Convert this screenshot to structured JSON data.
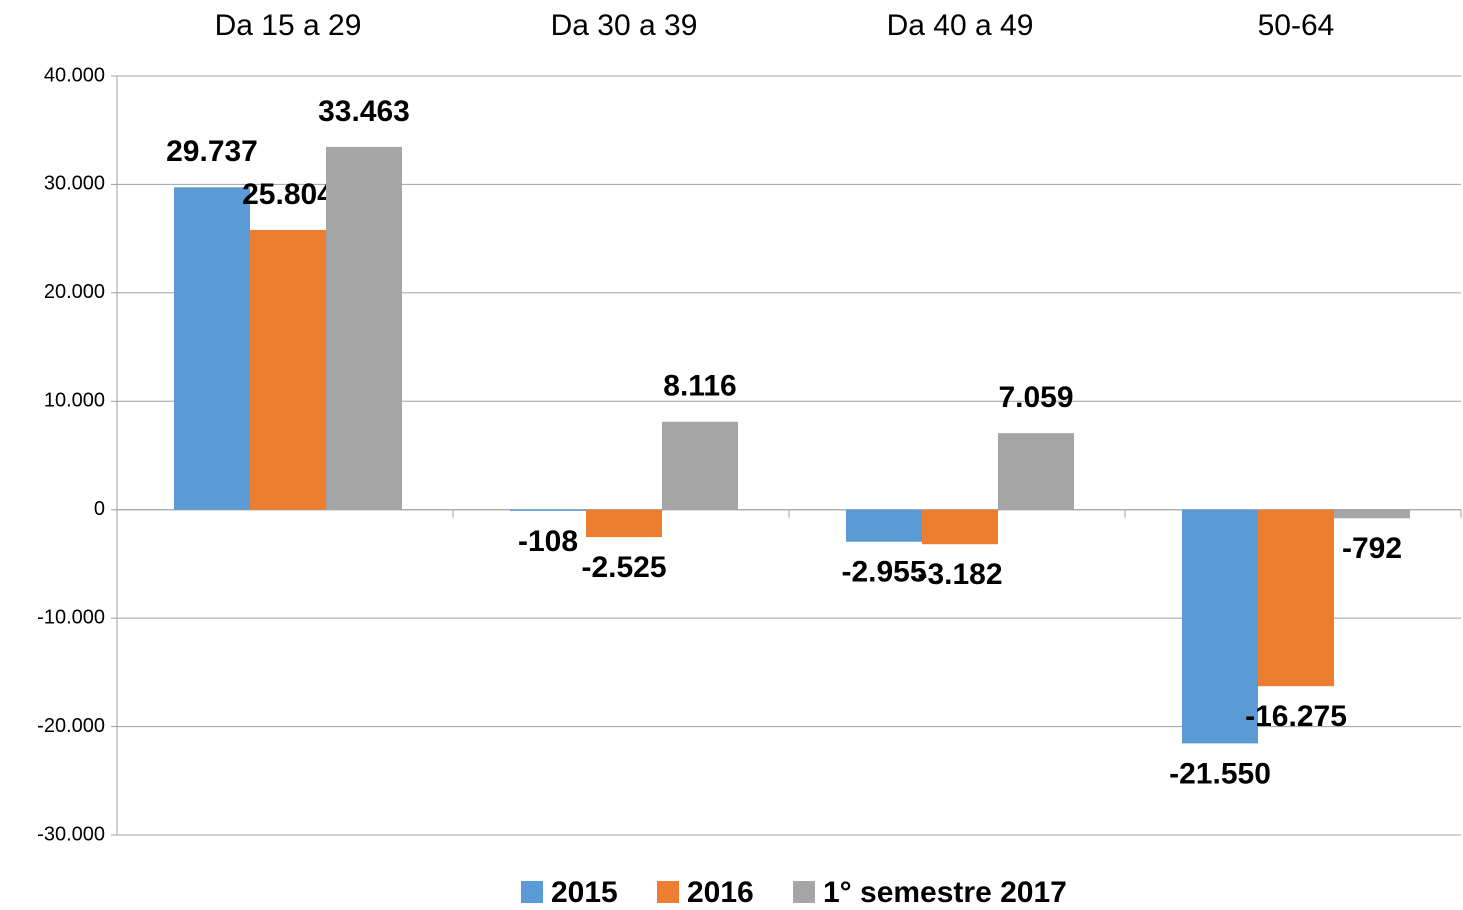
{
  "chart_data": {
    "type": "bar",
    "categories": [
      "Da 15 a 29",
      "Da 30 a 39",
      "Da 40 a 49",
      "50-64"
    ],
    "series": [
      {
        "name": "2015",
        "color": "#5b9bd5",
        "values": [
          29737,
          -108,
          -2955,
          -21550
        ],
        "value_labels": [
          "29.737",
          "-108",
          "-2.955",
          "-21.550"
        ]
      },
      {
        "name": "2016",
        "color": "#ed7d31",
        "values": [
          25804,
          -2525,
          -3182,
          -16275
        ],
        "value_labels": [
          "25.804",
          "-2.525",
          "-3.182",
          "-16.275"
        ]
      },
      {
        "name": "1° semestre 2017",
        "color": "#a5a5a5",
        "values": [
          33463,
          8116,
          7059,
          -792
        ],
        "value_labels": [
          "33.463",
          "8.116",
          "7.059",
          "-792"
        ]
      }
    ],
    "ylim": [
      -30000,
      40000
    ],
    "yticks": [
      {
        "value": -30000,
        "label": "-30.000"
      },
      {
        "value": -20000,
        "label": "-20.000"
      },
      {
        "value": -10000,
        "label": "-10.000"
      },
      0,
      {
        "value": 10000,
        "label": "10.000"
      },
      {
        "value": 20000,
        "label": "20.000"
      },
      {
        "value": 30000,
        "label": "30.000"
      },
      {
        "value": 40000,
        "label": "40.000"
      }
    ],
    "grid": true,
    "legend": "bottom"
  }
}
